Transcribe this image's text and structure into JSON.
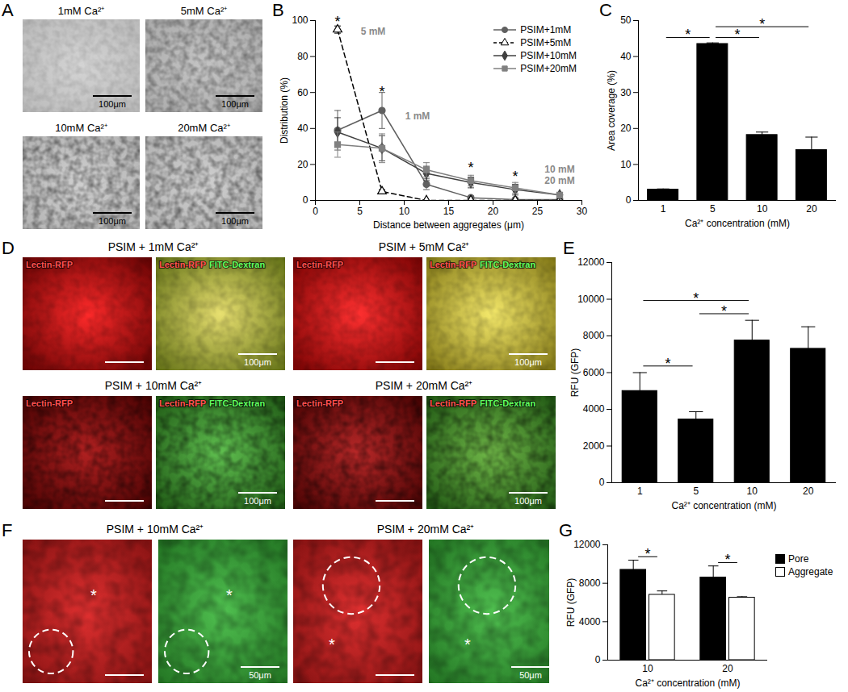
{
  "chart_data": [
    {
      "type": "line",
      "title": "B",
      "xlabel": "Distance between aggregates (μm)",
      "ylabel": "Distribution (%)",
      "x": [
        2.5,
        7.5,
        12.5,
        17.5,
        22.5,
        27.5
      ],
      "series": [
        {
          "name": "PSIM+1mM",
          "color": "#606060",
          "marker": "circle",
          "line_style": "solid",
          "values": [
            39,
            50,
            9,
            1.5,
            0.5,
            0.5
          ],
          "errors": [
            11,
            10,
            3,
            1,
            0.5,
            0.5
          ]
        },
        {
          "name": "PSIM+5mM",
          "color": "#000000",
          "marker": "open-triangle",
          "line_style": "dashed",
          "values": [
            95,
            5,
            0,
            0,
            0,
            0
          ],
          "errors": [
            2,
            1,
            0,
            0,
            0,
            0
          ]
        },
        {
          "name": "PSIM+10mM",
          "color": "#404040",
          "marker": "diamond",
          "line_style": "solid",
          "values": [
            38,
            29,
            15,
            10,
            6,
            3
          ],
          "errors": [
            8,
            7,
            4,
            3,
            3,
            1
          ]
        },
        {
          "name": "PSIM+20mM",
          "color": "#808080",
          "marker": "square",
          "line_style": "solid",
          "values": [
            31,
            29,
            17,
            11,
            7,
            3
          ],
          "errors": [
            7,
            8,
            4,
            3,
            3,
            1
          ]
        }
      ],
      "xlim": [
        0,
        30
      ],
      "xticks": [
        0,
        5,
        10,
        15,
        20,
        25,
        30
      ],
      "ylim": [
        0,
        100
      ],
      "yticks": [
        0,
        20,
        40,
        60,
        80,
        100
      ],
      "legend": "top-right",
      "annotations": [
        {
          "text": "5 mM",
          "x": 6.5,
          "y": 94
        },
        {
          "text": "1 mM",
          "x": 11.5,
          "y": 47
        },
        {
          "text": "10 mM",
          "x": 27.5,
          "y": 17
        },
        {
          "text": "20 mM",
          "x": 27.5,
          "y": 11
        }
      ],
      "significance": [
        {
          "text": "*",
          "x": 2.5,
          "y": 99
        },
        {
          "text": "*",
          "x": 7.5,
          "y": 60
        },
        {
          "text": "*",
          "x": 17.5,
          "y": 18
        },
        {
          "text": "*",
          "x": 22.5,
          "y": 13
        }
      ]
    },
    {
      "type": "bar",
      "title": "C",
      "xlabel": "Ca²⁺ concentration (mM)",
      "ylabel": "Area coverage (%)",
      "categories": [
        "1",
        "5",
        "10",
        "20"
      ],
      "values": [
        3,
        43.5,
        18.2,
        14
      ],
      "errors": [
        0.2,
        0.3,
        0.8,
        3.6
      ],
      "color": "#000000",
      "ylim": [
        0,
        50
      ],
      "yticks": [
        0,
        10,
        20,
        30,
        40,
        50
      ],
      "significance": [
        {
          "from": "1",
          "to": "5",
          "text": "*"
        },
        {
          "from": "5",
          "to": "10",
          "text": "*"
        },
        {
          "from": "5",
          "to": "20",
          "text": "*"
        }
      ]
    },
    {
      "type": "bar",
      "title": "E",
      "xlabel": "Ca²⁺ concentration (mM)",
      "ylabel": "RFU (GFP)",
      "categories": [
        "1",
        "5",
        "10",
        "20"
      ],
      "values": [
        5000,
        3450,
        7750,
        7300
      ],
      "errors": [
        1000,
        420,
        1100,
        1200
      ],
      "color": "#000000",
      "ylim": [
        0,
        12000
      ],
      "yticks": [
        0,
        2000,
        4000,
        6000,
        8000,
        10000,
        12000
      ],
      "significance": [
        {
          "from": "1",
          "to": "5",
          "text": "*"
        },
        {
          "from": "5",
          "to": "10",
          "text": "*"
        },
        {
          "from": "1",
          "to": "10",
          "text": "*"
        }
      ]
    },
    {
      "type": "bar",
      "title": "G",
      "xlabel": "Ca²⁺ concentration (mM)",
      "ylabel": "RFU (GFP)",
      "categories": [
        "10",
        "20"
      ],
      "series": [
        {
          "name": "Pore",
          "color": "#000000",
          "values": [
            9400,
            8600
          ],
          "errors": [
            1000,
            1200
          ]
        },
        {
          "name": "Aggregate",
          "color": "#ffffff",
          "values": [
            6800,
            6500
          ],
          "errors": [
            400,
            100
          ]
        }
      ],
      "ylim": [
        0,
        12000
      ],
      "yticks": [
        0,
        4000,
        8000,
        12000
      ],
      "legend": "right",
      "significance": [
        {
          "category": "10",
          "text": "*"
        },
        {
          "category": "20",
          "text": "*"
        }
      ]
    }
  ],
  "image_panels": [
    {
      "letter": "A",
      "images": [
        {
          "label": "1mM Ca²⁺",
          "scale_bar": "100μm"
        },
        {
          "label": "5mM Ca²⁺",
          "scale_bar": "100μm"
        },
        {
          "label": "10mM Ca²⁺",
          "scale_bar": "100μm"
        },
        {
          "label": "20mM Ca²⁺",
          "scale_bar": "100μm"
        }
      ]
    },
    {
      "letter": "D",
      "conditions": [
        {
          "label": "PSIM + 1mM Ca²⁺",
          "channels": [
            [
              "Lectin-RFP"
            ],
            [
              "Lectin-RFP",
              "FITC-Dextran"
            ]
          ],
          "scale_bar": "100μm"
        },
        {
          "label": "PSIM + 5mM Ca²⁺",
          "channels": [
            [
              "Lectin-RFP"
            ],
            [
              "Lectin-RFP",
              "FITC-Dextran"
            ]
          ],
          "scale_bar": "100μm"
        },
        {
          "label": "PSIM + 10mM Ca²⁺",
          "channels": [
            [
              "Lectin-RFP"
            ],
            [
              "Lectin-RFP",
              "FITC-Dextran"
            ]
          ],
          "scale_bar": "100μm"
        },
        {
          "label": "PSIM + 20mM Ca²⁺",
          "channels": [
            [
              "Lectin-RFP"
            ],
            [
              "Lectin-RFP",
              "FITC-Dextran"
            ]
          ],
          "scale_bar": "100μm"
        }
      ]
    },
    {
      "letter": "F",
      "conditions": [
        {
          "label": "PSIM + 10mM Ca²⁺",
          "marker": "*",
          "scale_bar": "50μm"
        },
        {
          "label": "PSIM + 20mM Ca²⁺",
          "marker": "*",
          "scale_bar": "50μm"
        }
      ]
    }
  ]
}
